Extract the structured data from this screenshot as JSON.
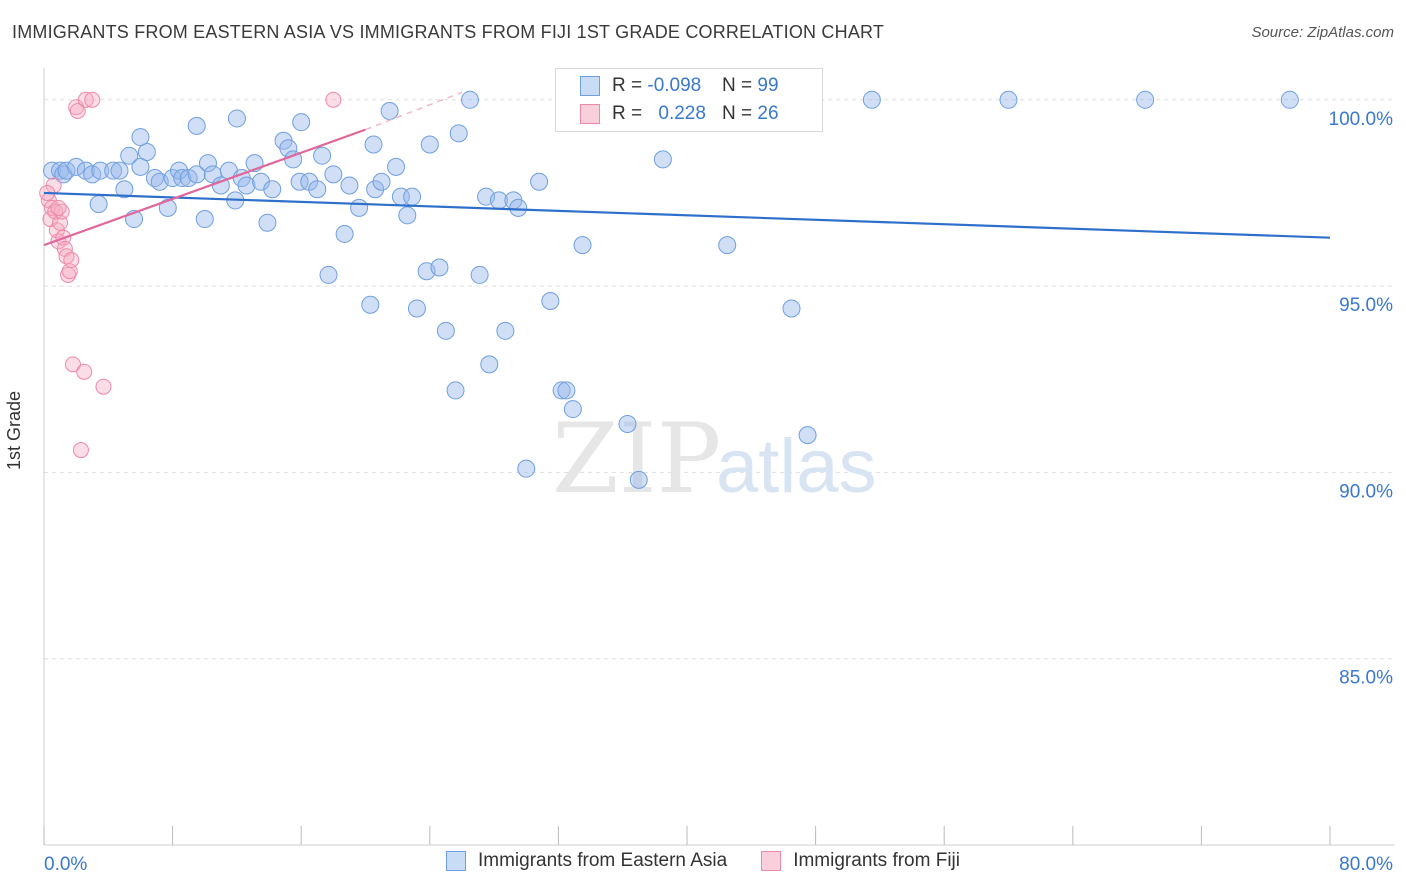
{
  "header": {
    "title": "IMMIGRANTS FROM EASTERN ASIA VS IMMIGRANTS FROM FIJI 1ST GRADE CORRELATION CHART",
    "source": "Source: ZipAtlas.com"
  },
  "watermark": {
    "zip": "ZIP",
    "atlas": "atlas"
  },
  "legend_box": {
    "rows": [
      {
        "r_label": "R = ",
        "r_value": "-0.098",
        "n_label": "N = ",
        "n_value": "99"
      },
      {
        "r_label": "R = ",
        "r_value": "0.228",
        "n_label": "N = ",
        "n_value": "26"
      }
    ]
  },
  "chart_data": {
    "type": "scatter",
    "ylabel": "1st Grade",
    "xlim": [
      0,
      80
    ],
    "ylim": [
      80,
      100.8
    ],
    "x_tick_labels": [
      "0.0%",
      "80.0%"
    ],
    "y_ticks": [
      85,
      90,
      95,
      100
    ],
    "y_tick_labels": [
      "85.0%",
      "90.0%",
      "95.0%",
      "100.0%"
    ],
    "grid": "horizontal dashed",
    "legend_position": "top-center",
    "colors": {
      "blue": "#6f9fe0",
      "blue_line": "#2e6fcc",
      "pink": "#ee8aa8",
      "pink_line": "#e0679a",
      "axis_label": "#3a78d0"
    },
    "series": [
      {
        "name": "Immigrants from Eastern Asia",
        "color": "#6f9fe0",
        "trend": {
          "x1": 0,
          "y1": 97.5,
          "x2": 80,
          "y2": 96.3
        },
        "points": [
          [
            0.5,
            98.1
          ],
          [
            1.0,
            98.1
          ],
          [
            1.2,
            98.0
          ],
          [
            1.4,
            98.1
          ],
          [
            2.0,
            98.2
          ],
          [
            2.6,
            98.1
          ],
          [
            3.0,
            98.0
          ],
          [
            3.5,
            98.1
          ],
          [
            3.4,
            97.2
          ],
          [
            4.3,
            98.1
          ],
          [
            4.7,
            98.1
          ],
          [
            5.0,
            97.6
          ],
          [
            5.3,
            98.5
          ],
          [
            5.6,
            96.8
          ],
          [
            6.0,
            98.2
          ],
          [
            6.4,
            98.6
          ],
          [
            6.9,
            97.9
          ],
          [
            7.2,
            97.8
          ],
          [
            7.7,
            97.1
          ],
          [
            8.0,
            97.9
          ],
          [
            8.4,
            98.1
          ],
          [
            8.6,
            97.9
          ],
          [
            9.0,
            97.9
          ],
          [
            9.5,
            98.0
          ],
          [
            10.0,
            96.8
          ],
          [
            10.2,
            98.3
          ],
          [
            10.5,
            98.0
          ],
          [
            11.0,
            97.7
          ],
          [
            11.5,
            98.1
          ],
          [
            11.9,
            97.3
          ],
          [
            12.3,
            97.9
          ],
          [
            12.6,
            97.7
          ],
          [
            13.1,
            98.3
          ],
          [
            13.5,
            97.8
          ],
          [
            13.9,
            96.7
          ],
          [
            14.2,
            97.6
          ],
          [
            14.9,
            98.9
          ],
          [
            15.2,
            98.7
          ],
          [
            15.5,
            98.4
          ],
          [
            15.9,
            97.8
          ],
          [
            16.5,
            97.8
          ],
          [
            17.0,
            97.6
          ],
          [
            17.3,
            98.5
          ],
          [
            17.7,
            95.3
          ],
          [
            18.0,
            98.0
          ],
          [
            18.7,
            96.4
          ],
          [
            19.0,
            97.7
          ],
          [
            19.6,
            97.1
          ],
          [
            20.3,
            94.5
          ],
          [
            20.6,
            97.6
          ],
          [
            21.0,
            97.8
          ],
          [
            21.5,
            99.7
          ],
          [
            21.9,
            98.2
          ],
          [
            22.2,
            97.4
          ],
          [
            22.6,
            96.9
          ],
          [
            22.9,
            97.4
          ],
          [
            23.2,
            94.4
          ],
          [
            23.8,
            95.4
          ],
          [
            24.6,
            95.5
          ],
          [
            25.0,
            93.8
          ],
          [
            25.6,
            92.2
          ],
          [
            25.8,
            99.1
          ],
          [
            26.5,
            100.0
          ],
          [
            27.1,
            95.3
          ],
          [
            27.5,
            97.4
          ],
          [
            27.7,
            92.9
          ],
          [
            28.3,
            97.3
          ],
          [
            28.7,
            93.8
          ],
          [
            29.2,
            97.3
          ],
          [
            29.5,
            97.1
          ],
          [
            30.0,
            90.1
          ],
          [
            30.8,
            97.8
          ],
          [
            31.5,
            94.6
          ],
          [
            32.2,
            92.2
          ],
          [
            32.5,
            92.2
          ],
          [
            32.9,
            91.7
          ],
          [
            33.5,
            96.1
          ],
          [
            34.5,
            100.0
          ],
          [
            35.8,
            100.0
          ],
          [
            36.3,
            91.3
          ],
          [
            36.8,
            100.0
          ],
          [
            37.0,
            89.8
          ],
          [
            38.5,
            98.4
          ],
          [
            40.0,
            100.0
          ],
          [
            42.5,
            96.1
          ],
          [
            43.5,
            100.0
          ],
          [
            46.5,
            94.4
          ],
          [
            47.5,
            91.0
          ],
          [
            51.5,
            100.0
          ],
          [
            60.0,
            100.0
          ],
          [
            68.5,
            100.0
          ],
          [
            77.5,
            100.0
          ],
          [
            20.5,
            98.8
          ],
          [
            12.0,
            99.5
          ],
          [
            9.5,
            99.3
          ],
          [
            16.0,
            99.4
          ],
          [
            24.0,
            98.8
          ],
          [
            6.0,
            99.0
          ],
          [
            33.0,
            100.0
          ]
        ]
      },
      {
        "name": "Immigrants from Fiji",
        "color": "#ee8aa8",
        "trend": {
          "x1": 0,
          "y1": 96.1,
          "x2": 20,
          "y2": 99.2
        },
        "trend_dashed": {
          "x1": 20,
          "y1": 99.2,
          "x2": 26,
          "y2": 100.2
        },
        "points": [
          [
            0.3,
            97.3
          ],
          [
            0.4,
            96.8
          ],
          [
            0.5,
            97.1
          ],
          [
            0.6,
            97.7
          ],
          [
            0.7,
            97.0
          ],
          [
            0.8,
            96.5
          ],
          [
            0.9,
            96.2
          ],
          [
            1.0,
            96.7
          ],
          [
            1.1,
            97.0
          ],
          [
            1.2,
            96.3
          ],
          [
            1.3,
            96.0
          ],
          [
            1.4,
            95.8
          ],
          [
            1.5,
            95.3
          ],
          [
            1.6,
            95.4
          ],
          [
            1.7,
            95.7
          ],
          [
            1.8,
            92.9
          ],
          [
            2.0,
            99.8
          ],
          [
            2.1,
            99.7
          ],
          [
            2.3,
            90.6
          ],
          [
            2.5,
            92.7
          ],
          [
            2.6,
            100.0
          ],
          [
            3.0,
            100.0
          ],
          [
            3.7,
            92.3
          ],
          [
            18.0,
            100.0
          ],
          [
            0.2,
            97.5
          ],
          [
            0.9,
            97.1
          ]
        ]
      }
    ]
  },
  "bottom_legend": {
    "items": [
      "Immigrants from Eastern Asia",
      "Immigrants from Fiji"
    ]
  }
}
